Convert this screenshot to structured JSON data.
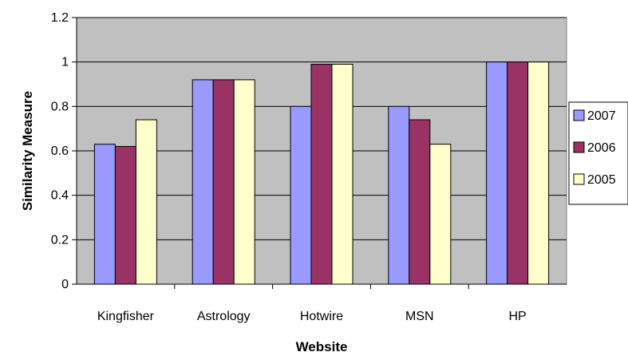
{
  "chart_data": {
    "type": "bar",
    "title": "",
    "xlabel": "Website",
    "ylabel": "Similarity Measure",
    "categories": [
      "Kingfisher",
      "Astrology",
      "Hotwire",
      "MSN",
      "HP"
    ],
    "series": [
      {
        "name": "2007",
        "values": [
          0.63,
          0.92,
          0.8,
          0.8,
          1.0
        ],
        "color": "#9999FF"
      },
      {
        "name": "2006",
        "values": [
          0.62,
          0.92,
          0.99,
          0.74,
          1.0
        ],
        "color": "#993366"
      },
      {
        "name": "2005",
        "values": [
          0.74,
          0.92,
          0.99,
          0.63,
          1.0
        ],
        "color": "#FFFFCC"
      }
    ],
    "ylim": [
      0,
      1.2
    ],
    "yticks": [
      "0",
      "0.2",
      "0.4",
      "0.6",
      "0.8",
      "1",
      "1.2"
    ],
    "grid": true,
    "plot_background": "#C0C0C0",
    "legend_position": "right"
  }
}
